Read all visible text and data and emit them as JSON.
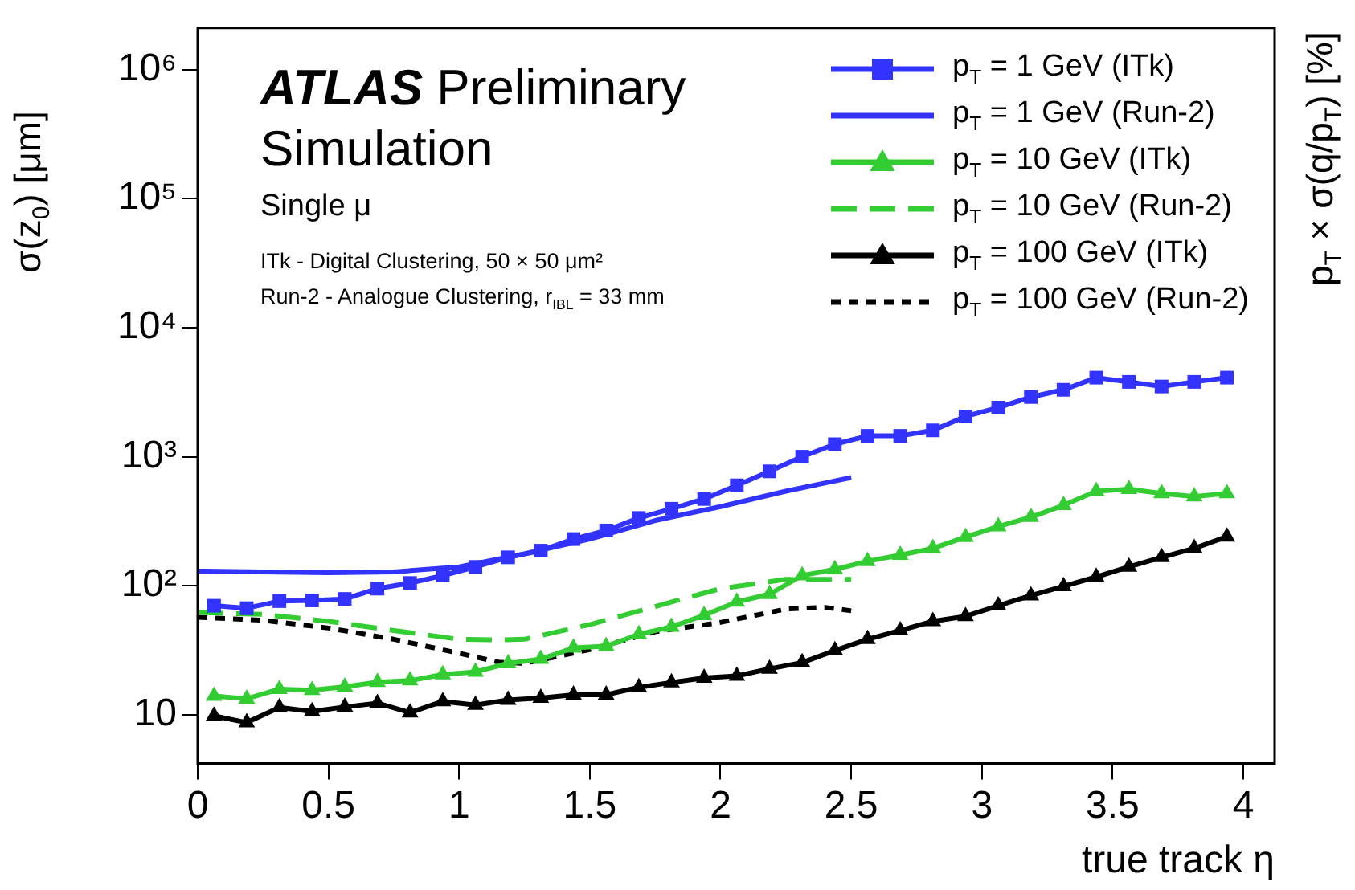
{
  "chart_data": {
    "type": "line",
    "title": "ATLAS Preliminary Simulation",
    "subtitle": "Single μ",
    "annotations": [
      "ITk - Digital Clustering, 50 × 50 μm²",
      "Run-2 - Analogue Clustering, r$_{IBL}$ = 33 mm"
    ],
    "xlabel": "true track η",
    "ylabel": "σ(z$_{0}$) [μm]",
    "y2label": "p$_{T}$ × σ(q/p$_{T}$) [%]",
    "log": "y",
    "grid": false,
    "legend": "top right",
    "xlim": [
      0,
      4.12
    ],
    "xticks": [
      0,
      0.5,
      1,
      1.5,
      2,
      2.5,
      3,
      3.5,
      4
    ],
    "ylim": [
      4.2,
      2100000
    ],
    "yticks": [
      10,
      {
        "value": 100,
        "label": "10²"
      },
      {
        "value": 1000,
        "label": "10³"
      },
      {
        "value": 10000,
        "label": "10⁴"
      },
      {
        "value": 100000,
        "label": "10⁵"
      },
      {
        "value": 1000000,
        "label": "10⁶"
      }
    ],
    "series": [
      {
        "name": "p$_{T}$ = 1 GeV (ITk)",
        "color": "#3333ff",
        "marker": "square",
        "line_style": "solid",
        "x": [
          0.0625,
          0.1875,
          0.3125,
          0.4375,
          0.5625,
          0.6875,
          0.8125,
          0.9375,
          1.0625,
          1.1875,
          1.3125,
          1.4375,
          1.5625,
          1.6875,
          1.8125,
          1.9375,
          2.0625,
          2.1875,
          2.3125,
          2.4375,
          2.5625,
          2.6875,
          2.8125,
          2.9375,
          3.0625,
          3.1875,
          3.3125,
          3.4375,
          3.5625,
          3.6875,
          3.8125,
          3.9375
        ],
        "values": [
          70,
          67,
          76,
          77,
          79,
          95,
          105,
          120,
          140,
          166,
          187,
          230,
          268,
          335,
          395,
          470,
          600,
          770,
          1000,
          1250,
          1450,
          1450,
          1600,
          2050,
          2400,
          2900,
          3300,
          4100,
          3800,
          3500,
          3800,
          4100
        ]
      },
      {
        "name": "p$_{T}$ = 1 GeV (Run-2)",
        "color": "#3333ff",
        "marker": "none",
        "line_style": "solid",
        "x": [
          0,
          0.25,
          0.5,
          0.75,
          1,
          1.25,
          1.5,
          1.75,
          2,
          2.25,
          2.5
        ],
        "values": [
          130,
          128,
          126,
          128,
          140,
          177,
          230,
          320,
          410,
          540,
          690
        ]
      },
      {
        "name": "p$_{T}$ = 10 GeV (ITk)",
        "color": "#33cc33",
        "marker": "triangle",
        "line_style": "solid",
        "x": [
          0.0625,
          0.1875,
          0.3125,
          0.4375,
          0.5625,
          0.6875,
          0.8125,
          0.9375,
          1.0625,
          1.1875,
          1.3125,
          1.4375,
          1.5625,
          1.6875,
          1.8125,
          1.9375,
          2.0625,
          2.1875,
          2.3125,
          2.4375,
          2.5625,
          2.6875,
          2.8125,
          2.9375,
          3.0625,
          3.1875,
          3.3125,
          3.4375,
          3.5625,
          3.6875,
          3.8125,
          3.9375
        ],
        "values": [
          14,
          13.3,
          15.8,
          15.5,
          16.5,
          17.9,
          18.4,
          20.5,
          21.5,
          25,
          27,
          33,
          34,
          42,
          48,
          59,
          75,
          86,
          120,
          134,
          155,
          173,
          195,
          238,
          288,
          340,
          420,
          540,
          560,
          520,
          490,
          520
        ]
      },
      {
        "name": "p$_{T}$ = 10 GeV (Run-2)",
        "color": "#33cc33",
        "marker": "none",
        "line_style": "dashed",
        "x": [
          0,
          0.25,
          0.5,
          0.75,
          1,
          1.15,
          1.25,
          1.5,
          1.75,
          2,
          2.25,
          2.5
        ],
        "values": [
          62,
          60,
          53,
          45,
          38.5,
          38,
          38.5,
          50,
          69,
          95,
          112,
          112
        ]
      },
      {
        "name": "p$_{T}$ = 100 GeV (ITk)",
        "color": "#000000",
        "marker": "triangle",
        "line_style": "solid",
        "x": [
          0.0625,
          0.1875,
          0.3125,
          0.4375,
          0.5625,
          0.6875,
          0.8125,
          0.9375,
          1.0625,
          1.1875,
          1.3125,
          1.4375,
          1.5625,
          1.6875,
          1.8125,
          1.9375,
          2.0625,
          2.1875,
          2.3125,
          2.4375,
          2.5625,
          2.6875,
          2.8125,
          2.9375,
          3.0625,
          3.1875,
          3.3125,
          3.4375,
          3.5625,
          3.6875,
          3.8125,
          3.9375
        ],
        "values": [
          9.8,
          8.7,
          11.4,
          10.6,
          11.5,
          12.3,
          10.4,
          12.7,
          11.9,
          13,
          13.5,
          14.3,
          14.3,
          16.3,
          17.8,
          19.3,
          20,
          22.7,
          25.4,
          31.5,
          38.5,
          45,
          53,
          58,
          70,
          84,
          99,
          117,
          140,
          166,
          195,
          240
        ]
      },
      {
        "name": "p$_{T}$ = 100 GeV (Run-2)",
        "color": "#000000",
        "marker": "none",
        "line_style": "dotted",
        "x": [
          0,
          0.25,
          0.5,
          0.75,
          1,
          1.15,
          1.25,
          1.5,
          1.75,
          2,
          2.25,
          2.4,
          2.5
        ],
        "values": [
          57,
          54,
          47,
          38.5,
          30,
          25.6,
          25,
          32,
          44,
          52,
          66,
          68,
          64
        ]
      }
    ]
  }
}
